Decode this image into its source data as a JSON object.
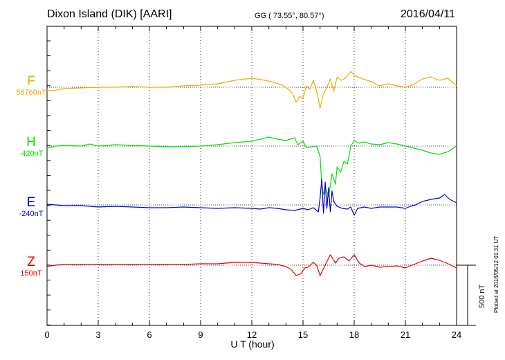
{
  "header": {
    "station": "Dixon Island (DIK)  [AARI]",
    "coords": "GG ( 73.55°,  80.57°)",
    "date": "2016/04/11"
  },
  "footer": {
    "plotted": "Plotted at 2016/05/12 01:31  UT"
  },
  "scale_bar": {
    "label": "500 nT",
    "value_nT": 500
  },
  "colors": {
    "F": "#f5a800",
    "H": "#00e000",
    "E": "#0000cc",
    "Z": "#e00000",
    "grid": "#000000"
  },
  "chart_data": {
    "type": "line",
    "title": "Dixon Island (DIK)  [AARI]",
    "xlabel": "U T (hour)",
    "ylabel": "",
    "xlim": [
      0,
      24
    ],
    "xticks": [
      "0",
      "3",
      "6",
      "9",
      "12",
      "15",
      "18",
      "21",
      "24"
    ],
    "grid": true,
    "components": [
      {
        "name": "F",
        "baseline_label": "58760nT",
        "color": "#f5a800",
        "points": [
          [
            0,
            -5
          ],
          [
            0.3,
            -5
          ],
          [
            1,
            -2
          ],
          [
            2,
            -1
          ],
          [
            3,
            0
          ],
          [
            4,
            0
          ],
          [
            5,
            1
          ],
          [
            6,
            0
          ],
          [
            7,
            0
          ],
          [
            8,
            2
          ],
          [
            9,
            3
          ],
          [
            10,
            5
          ],
          [
            11,
            10
          ],
          [
            12,
            13
          ],
          [
            12.8,
            10
          ],
          [
            13.3,
            7
          ],
          [
            13.8,
            3
          ],
          [
            14.2,
            -4
          ],
          [
            14.4,
            -10
          ],
          [
            14.6,
            -22
          ],
          [
            14.8,
            -13
          ],
          [
            15.0,
            -16
          ],
          [
            15.2,
            2
          ],
          [
            15.4,
            -3
          ],
          [
            15.6,
            10
          ],
          [
            15.8,
            -5
          ],
          [
            16.0,
            -30
          ],
          [
            16.2,
            -10
          ],
          [
            16.4,
            0
          ],
          [
            16.6,
            12
          ],
          [
            16.8,
            -6
          ],
          [
            17.0,
            15
          ],
          [
            17.2,
            10
          ],
          [
            17.5,
            13
          ],
          [
            17.8,
            23
          ],
          [
            18.0,
            17
          ],
          [
            18.5,
            12
          ],
          [
            19,
            8
          ],
          [
            19.5,
            2
          ],
          [
            20,
            5
          ],
          [
            20.5,
            2
          ],
          [
            21,
            0
          ],
          [
            21.5,
            4
          ],
          [
            22,
            12
          ],
          [
            22.5,
            15
          ],
          [
            23,
            10
          ],
          [
            23.5,
            13
          ],
          [
            24,
            2
          ]
        ]
      },
      {
        "name": "H",
        "baseline_label": "-420nT",
        "color": "#00e000",
        "points": [
          [
            0,
            -3
          ],
          [
            0.5,
            0
          ],
          [
            1,
            1
          ],
          [
            2,
            0
          ],
          [
            2.5,
            3
          ],
          [
            3,
            0
          ],
          [
            4,
            2
          ],
          [
            5,
            1
          ],
          [
            6,
            0
          ],
          [
            7,
            -1
          ],
          [
            8,
            -1
          ],
          [
            9,
            0
          ],
          [
            10,
            2
          ],
          [
            11,
            5
          ],
          [
            12,
            7
          ],
          [
            12.5,
            10
          ],
          [
            13,
            13
          ],
          [
            13.5,
            10
          ],
          [
            14,
            8
          ],
          [
            14.5,
            12
          ],
          [
            14.7,
            2
          ],
          [
            15.0,
            7
          ],
          [
            15.2,
            -2
          ],
          [
            15.5,
            -1
          ],
          [
            15.8,
            0
          ],
          [
            16.0,
            -15
          ],
          [
            16.1,
            -55
          ],
          [
            16.2,
            -70
          ],
          [
            16.3,
            -60
          ],
          [
            16.5,
            -73
          ],
          [
            16.7,
            -40
          ],
          [
            16.9,
            -55
          ],
          [
            17.0,
            -30
          ],
          [
            17.2,
            -38
          ],
          [
            17.4,
            -22
          ],
          [
            17.6,
            -26
          ],
          [
            17.8,
            0
          ],
          [
            18.0,
            8
          ],
          [
            18.3,
            4
          ],
          [
            18.6,
            6
          ],
          [
            19,
            3
          ],
          [
            19.5,
            2
          ],
          [
            20,
            5
          ],
          [
            20.5,
            3
          ],
          [
            21,
            0
          ],
          [
            21.5,
            -3
          ],
          [
            22,
            -6
          ],
          [
            22.5,
            -10
          ],
          [
            23,
            -12
          ],
          [
            23.5,
            -8
          ],
          [
            24,
            0
          ]
        ]
      },
      {
        "name": "E",
        "baseline_label": "-240nT",
        "color": "#0000cc",
        "points": [
          [
            0,
            1
          ],
          [
            0.5,
            0
          ],
          [
            1,
            -1
          ],
          [
            2,
            -1
          ],
          [
            3,
            -3
          ],
          [
            4,
            -2
          ],
          [
            5,
            -3
          ],
          [
            6,
            -4
          ],
          [
            7,
            -4
          ],
          [
            8,
            -3
          ],
          [
            9,
            -4
          ],
          [
            10,
            -5
          ],
          [
            11,
            -4
          ],
          [
            12,
            -5
          ],
          [
            12.5,
            -6
          ],
          [
            13,
            -4
          ],
          [
            13.5,
            -5
          ],
          [
            14,
            -7
          ],
          [
            14.5,
            -8
          ],
          [
            15,
            -5
          ],
          [
            15.3,
            -7
          ],
          [
            15.6,
            -4
          ],
          [
            15.9,
            -10
          ],
          [
            16.0,
            10
          ],
          [
            16.1,
            37
          ],
          [
            16.2,
            -12
          ],
          [
            16.3,
            33
          ],
          [
            16.4,
            -5
          ],
          [
            16.5,
            25
          ],
          [
            16.6,
            -10
          ],
          [
            16.7,
            20
          ],
          [
            16.8,
            5
          ],
          [
            17.0,
            -2
          ],
          [
            17.3,
            -5
          ],
          [
            17.6,
            -6
          ],
          [
            17.8,
            -3
          ],
          [
            18.0,
            -15
          ],
          [
            18.2,
            -5
          ],
          [
            18.6,
            -3
          ],
          [
            19,
            -5
          ],
          [
            19.5,
            -3
          ],
          [
            20,
            -3
          ],
          [
            20.5,
            -3
          ],
          [
            21,
            -5
          ],
          [
            21.3,
            -2
          ],
          [
            21.6,
            0
          ],
          [
            22,
            5
          ],
          [
            22.5,
            8
          ],
          [
            23,
            10
          ],
          [
            23.3,
            15
          ],
          [
            23.6,
            8
          ],
          [
            24,
            3
          ]
        ]
      },
      {
        "name": "Z",
        "baseline_label": "150nT",
        "color": "#e00000",
        "points": [
          [
            0,
            -2
          ],
          [
            0.5,
            0
          ],
          [
            1,
            1
          ],
          [
            2,
            1
          ],
          [
            3,
            1
          ],
          [
            4,
            1
          ],
          [
            5,
            1
          ],
          [
            6,
            1
          ],
          [
            7,
            1
          ],
          [
            8,
            1
          ],
          [
            9,
            2
          ],
          [
            10,
            2
          ],
          [
            11,
            4
          ],
          [
            12,
            4
          ],
          [
            12.5,
            3
          ],
          [
            13,
            2
          ],
          [
            13.5,
            1
          ],
          [
            14,
            -2
          ],
          [
            14.3,
            -6
          ],
          [
            14.6,
            -15
          ],
          [
            14.9,
            -12
          ],
          [
            15.1,
            -4
          ],
          [
            15.3,
            -3
          ],
          [
            15.6,
            4
          ],
          [
            15.8,
            0
          ],
          [
            16.0,
            -15
          ],
          [
            16.2,
            -5
          ],
          [
            16.4,
            5
          ],
          [
            16.6,
            15
          ],
          [
            16.9,
            3
          ],
          [
            17.1,
            10
          ],
          [
            17.4,
            12
          ],
          [
            17.7,
            6
          ],
          [
            18.0,
            15
          ],
          [
            18.3,
            3
          ],
          [
            18.6,
            -2
          ],
          [
            19,
            0
          ],
          [
            19.5,
            -3
          ],
          [
            20,
            -2
          ],
          [
            20.5,
            -1
          ],
          [
            21,
            -4
          ],
          [
            21.3,
            -1
          ],
          [
            21.6,
            2
          ],
          [
            22,
            6
          ],
          [
            22.5,
            10
          ],
          [
            23,
            7
          ],
          [
            23.5,
            2
          ],
          [
            24,
            -4
          ]
        ]
      }
    ]
  }
}
